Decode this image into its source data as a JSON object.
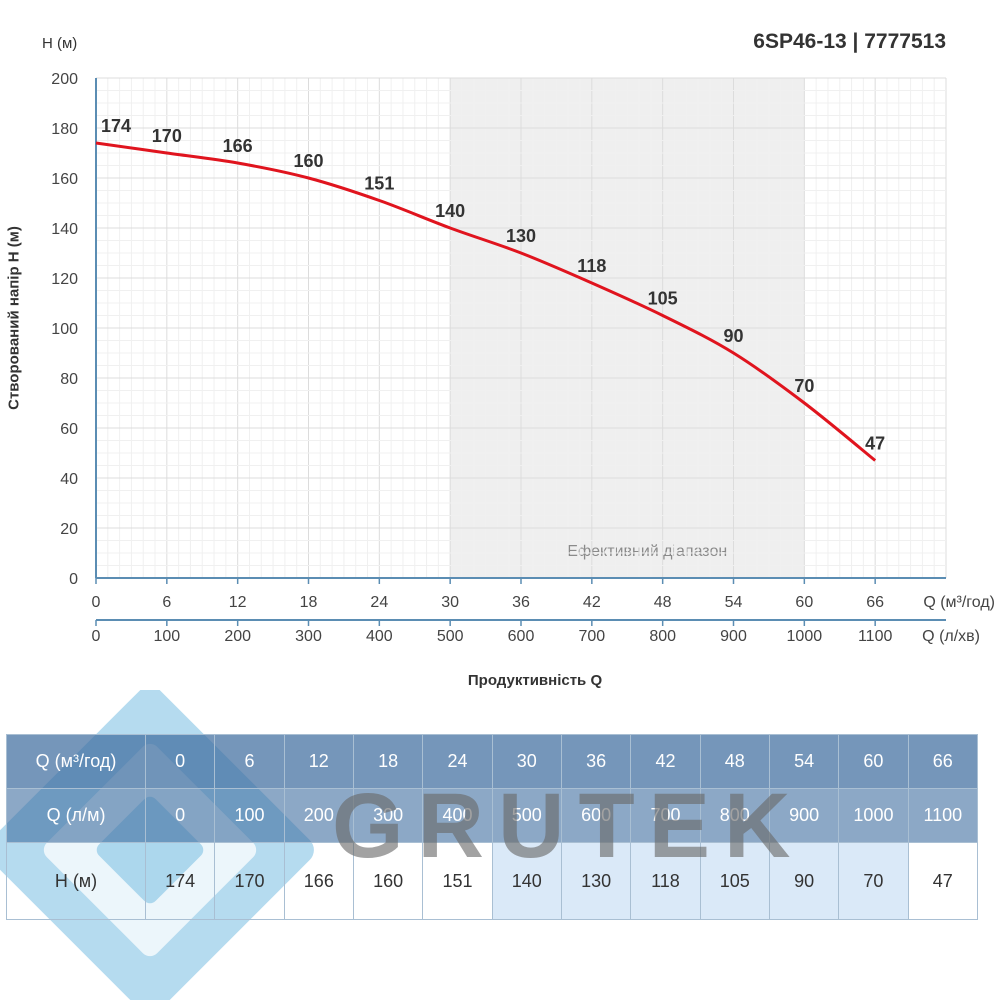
{
  "title": "6SP46-13 | 7777513",
  "y_unit_label": "H (м)",
  "y_axis_title": "Створований напір H (м)",
  "x_axis_title": "Продуктивність Q",
  "efficient_range_label": "Ефективний діапазон",
  "x_unit_primary": "Q (м³/год)",
  "x_unit_secondary": "Q (л/хв)",
  "watermark_text": "GRUTEK",
  "colors": {
    "curve": "#e0141e",
    "grid": "#e3e3e3",
    "axis": "#5b8db3",
    "efficient_band": "#efefef",
    "table_header": "#406ea0"
  },
  "chart_data": {
    "type": "line",
    "title": "6SP46-13 | 7777513",
    "xlabel": "Продуктивність Q",
    "ylabel": "Створований напір H (м)",
    "x": [
      0,
      6,
      12,
      18,
      24,
      30,
      36,
      42,
      48,
      54,
      60,
      66
    ],
    "x_secondary": [
      0,
      100,
      200,
      300,
      400,
      500,
      600,
      700,
      800,
      900,
      1000,
      1100
    ],
    "series": [
      {
        "name": "",
        "values": [
          174,
          170,
          166,
          160,
          151,
          140,
          130,
          118,
          105,
          90,
          70,
          47
        ]
      }
    ],
    "xlim": [
      0,
      72
    ],
    "ylim": [
      0,
      200
    ],
    "y_ticks": [
      0,
      20,
      40,
      60,
      80,
      100,
      120,
      140,
      160,
      180,
      200
    ],
    "efficient_range": [
      30,
      60
    ],
    "grid": true,
    "legend": "none"
  },
  "table": {
    "rows": [
      {
        "label": "Q (м³/год)",
        "values": [
          "0",
          "6",
          "12",
          "18",
          "24",
          "30",
          "36",
          "42",
          "48",
          "54",
          "60",
          "66"
        ]
      },
      {
        "label": "Q (л/м)",
        "values": [
          "0",
          "100",
          "200",
          "300",
          "400",
          "500",
          "600",
          "700",
          "800",
          "900",
          "1000",
          "1100"
        ]
      },
      {
        "label": "H (м)",
        "values": [
          "174",
          "170",
          "166",
          "160",
          "151",
          "140",
          "130",
          "118",
          "105",
          "90",
          "70",
          "47"
        ]
      }
    ]
  }
}
